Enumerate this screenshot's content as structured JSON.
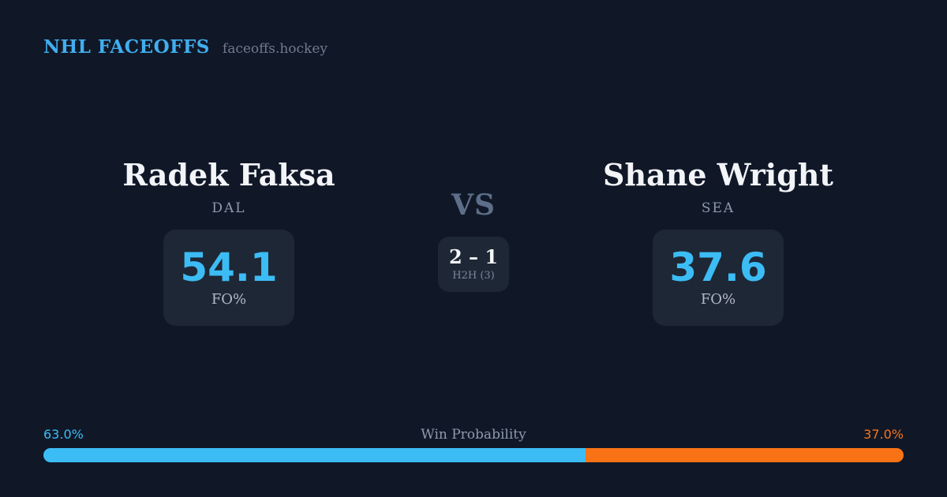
{
  "header": {
    "brand": "NHL FACEOFFS",
    "site": "faceoffs.hockey"
  },
  "players": {
    "left": {
      "name": "Radek Faksa",
      "team": "DAL",
      "fo_pct": "54.1",
      "stat_label": "FO%"
    },
    "right": {
      "name": "Shane Wright",
      "team": "SEA",
      "fo_pct": "37.6",
      "stat_label": "FO%"
    }
  },
  "versus": {
    "label": "VS",
    "h2h_score": "2 – 1",
    "h2h_label": "H2H (3)"
  },
  "win_probability": {
    "title": "Win Probability",
    "left_label": "63.0%",
    "right_label": "37.0%",
    "left_pct": 63.0,
    "right_pct": 37.0,
    "left_width": "63%",
    "right_width": "37%",
    "left_color": "#3cbcf5",
    "right_color": "#f97316"
  },
  "colors": {
    "background": "#101828",
    "card": "#1e2735",
    "accent_blue": "#3cbcf5",
    "accent_orange": "#f97316",
    "brand_blue": "#41aeee",
    "text_primary": "#f2f4f8",
    "text_muted": "#8d9aad"
  }
}
